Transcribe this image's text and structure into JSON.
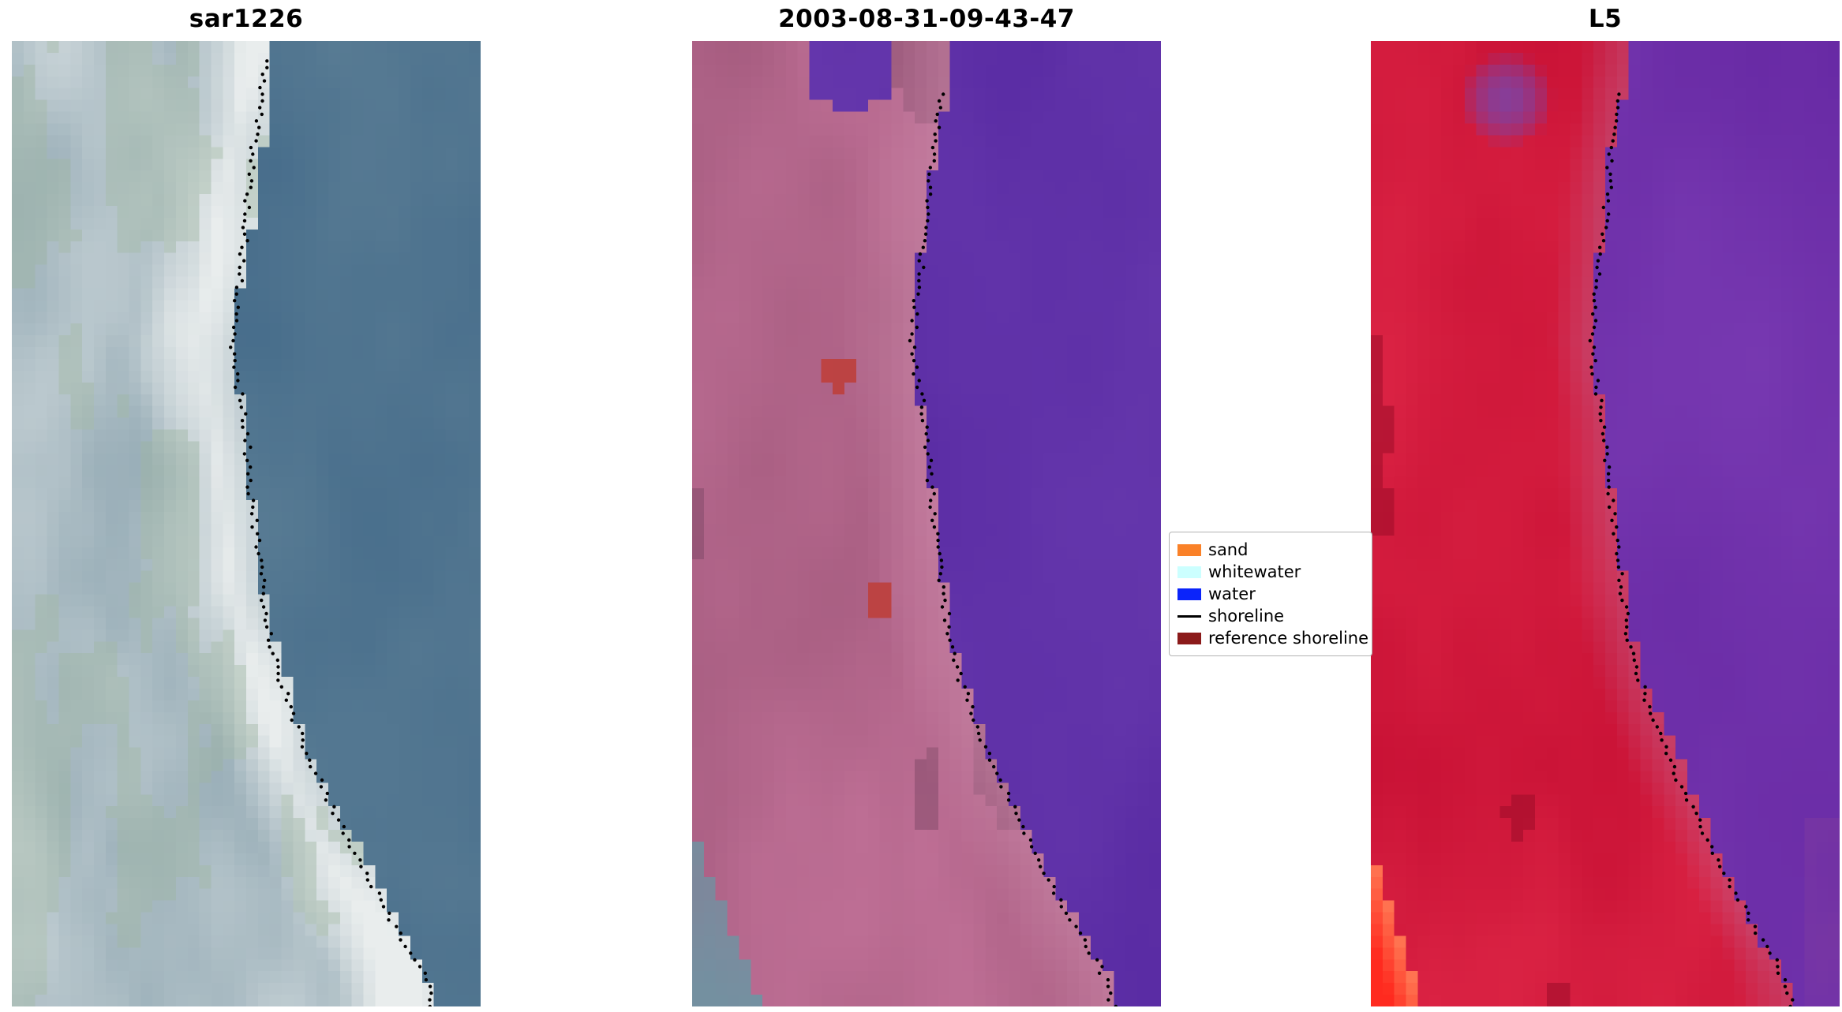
{
  "figure": {
    "background": "#ffffff",
    "panels": [
      {
        "id": "sar",
        "title": "sar1226"
      },
      {
        "id": "cls",
        "title": "2003-08-31-09-43-47"
      },
      {
        "id": "l5",
        "title": "L5"
      }
    ],
    "legend": {
      "items": [
        {
          "label": "sand",
          "swatch": "patch",
          "color": "#fa8128"
        },
        {
          "label": "whitewater",
          "swatch": "patch",
          "color": "#ccffff"
        },
        {
          "label": "water",
          "swatch": "patch",
          "color": "#0b24fa"
        },
        {
          "label": "shoreline",
          "swatch": "line",
          "color": "#000000"
        },
        {
          "label": "reference shoreline",
          "swatch": "patch",
          "color": "#8b1a1a"
        }
      ]
    }
  },
  "panel_styles": {
    "sar": {
      "water": [
        "#3c6486",
        "#5e8096"
      ],
      "land_dark": "#7d98a5",
      "land_light": "#e9eded",
      "green_tint": "#9eb69c",
      "boundary_noise": 0.12
    },
    "cls": {
      "water": [
        "#5527a0",
        "#6a3cb0"
      ],
      "land": [
        "#9c5577",
        "#c4739a"
      ],
      "land_dark": "#7e4766",
      "beach": "#cf8fae",
      "red_patch": "#bf4444",
      "teal": "#6f93a2",
      "boundary_noise": 0.04
    },
    "l5": {
      "water": [
        "#6527a2",
        "#7b3cb4"
      ],
      "land": [
        "#c60f33",
        "#e02848"
      ],
      "land_dark": "#9c0c28",
      "beach": "#c05a85",
      "purple_blob": "#7a44a8",
      "bright_red": [
        "#ff2a1f",
        "#ff7a55"
      ],
      "boundary_noise": 0.1
    }
  },
  "chart_data": {
    "type": "image-panels",
    "description": "Three co-registered coastal satellite image crops with detected shoreline (black dotted points) overlaid",
    "panels": [
      {
        "title": "sar1226"
      },
      {
        "title": "2003-08-31-09-43-47"
      },
      {
        "title": "L5"
      }
    ],
    "legend": [
      "sand",
      "whitewater",
      "water",
      "shoreline",
      "reference shoreline"
    ],
    "legend_position": "center-right, between second and third panel",
    "shoreline_path": [
      [
        0.545,
        0.0
      ],
      [
        0.54,
        0.03
      ],
      [
        0.528,
        0.075
      ],
      [
        0.512,
        0.125
      ],
      [
        0.503,
        0.17
      ],
      [
        0.494,
        0.215
      ],
      [
        0.48,
        0.265
      ],
      [
        0.47,
        0.31
      ],
      [
        0.478,
        0.345
      ],
      [
        0.492,
        0.38
      ],
      [
        0.502,
        0.42
      ],
      [
        0.508,
        0.46
      ],
      [
        0.518,
        0.5
      ],
      [
        0.528,
        0.54
      ],
      [
        0.538,
        0.58
      ],
      [
        0.552,
        0.62
      ],
      [
        0.572,
        0.66
      ],
      [
        0.6,
        0.7
      ],
      [
        0.632,
        0.74
      ],
      [
        0.66,
        0.77
      ],
      [
        0.685,
        0.795
      ],
      [
        0.715,
        0.825
      ],
      [
        0.745,
        0.852
      ],
      [
        0.772,
        0.878
      ],
      [
        0.8,
        0.902
      ],
      [
        0.832,
        0.928
      ],
      [
        0.862,
        0.952
      ],
      [
        0.885,
        0.975
      ],
      [
        0.898,
        1.0
      ]
    ]
  }
}
